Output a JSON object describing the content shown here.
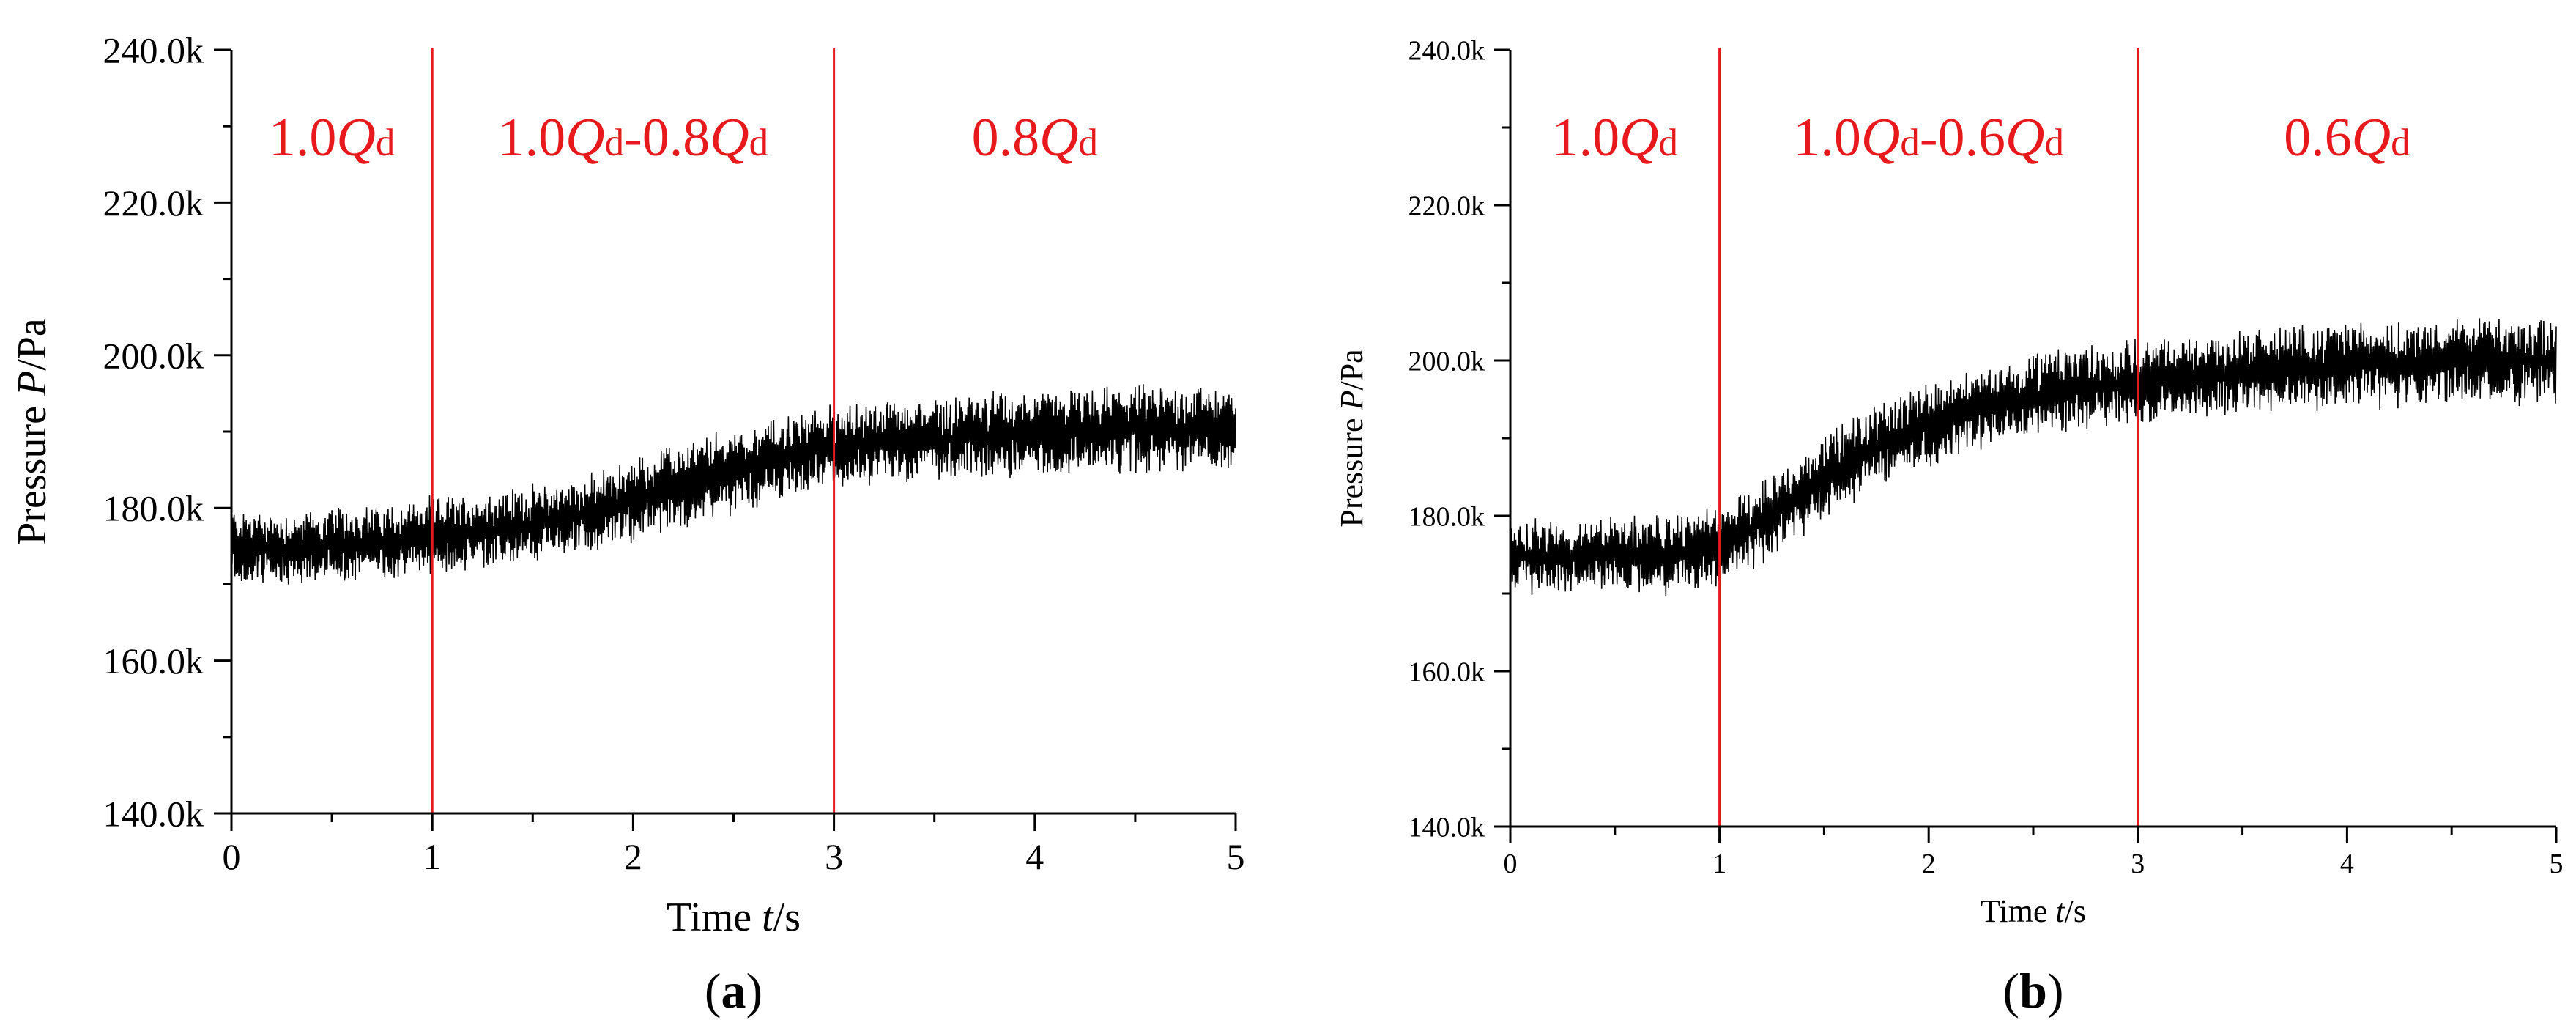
{
  "chart_data": [
    {
      "type": "line",
      "panel_label": "a",
      "xlabel": "Time t/s",
      "ylabel": "Pressure P/Pa",
      "xlim": [
        0,
        5
      ],
      "ylim": [
        140000,
        240000
      ],
      "x_ticks": [
        "0",
        "1",
        "2",
        "3",
        "4",
        "5"
      ],
      "y_ticks": [
        "140.0k",
        "160.0k",
        "180.0k",
        "200.0k",
        "220.0k",
        "240.0k"
      ],
      "grid": false,
      "legend": "none",
      "line_color": "#000000",
      "divider_color": "#e8191d",
      "dividers_x": [
        1,
        3
      ],
      "regions": [
        "1.0Qd",
        "1.0Qd-0.8Qd",
        "0.8Qd"
      ],
      "series": [
        {
          "x": [
            0,
            0.25,
            0.5,
            0.75,
            1.0,
            1.25,
            1.5,
            1.75,
            2.0,
            2.25,
            2.5,
            2.75,
            3.0,
            3.25,
            3.5,
            3.75,
            4.0,
            4.25,
            4.5,
            4.75,
            5.0
          ],
          "mean": [
            175000,
            174500,
            175000,
            175500,
            176500,
            177000,
            178000,
            179000,
            181000,
            183000,
            185000,
            186500,
            188000,
            188500,
            189000,
            189500,
            190000,
            190000,
            190500,
            190500,
            190500
          ],
          "band": [
            4500,
            4500,
            4500,
            4500,
            4500,
            4500,
            4500,
            4500,
            5000,
            5000,
            5000,
            5000,
            5000,
            5000,
            5000,
            5000,
            5000,
            5000,
            5000,
            5000,
            5000
          ]
        }
      ]
    },
    {
      "type": "line",
      "panel_label": "b",
      "xlabel": "Time t/s",
      "ylabel": "Pressure P/Pa",
      "xlim": [
        0,
        5
      ],
      "ylim": [
        140000,
        240000
      ],
      "x_ticks": [
        "0",
        "1",
        "2",
        "3",
        "4",
        "5"
      ],
      "y_ticks": [
        "140.0k",
        "160.0k",
        "180.0k",
        "200.0k",
        "220.0k",
        "240.0k"
      ],
      "grid": false,
      "legend": "none",
      "line_color": "#000000",
      "divider_color": "#e8191d",
      "dividers_x": [
        1,
        3
      ],
      "regions": [
        "1.0Qd",
        "1.0Qd-0.6Qd",
        "0.6Qd"
      ],
      "series": [
        {
          "x": [
            0,
            0.25,
            0.5,
            0.75,
            1.0,
            1.25,
            1.5,
            1.75,
            2.0,
            2.25,
            2.5,
            2.75,
            3.0,
            3.25,
            3.5,
            3.75,
            4.0,
            4.25,
            4.5,
            4.75,
            5.0
          ],
          "mean": [
            175000,
            174500,
            175000,
            175000,
            176000,
            180000,
            185000,
            189000,
            192000,
            194000,
            195500,
            196500,
            197000,
            198000,
            198500,
            199000,
            199500,
            199500,
            200000,
            200000,
            200000
          ],
          "band": [
            4500,
            4500,
            4500,
            4500,
            4500,
            5000,
            5000,
            5000,
            5000,
            5000,
            5000,
            5000,
            5000,
            5000,
            5000,
            5000,
            5000,
            5000,
            5000,
            5000,
            5000
          ]
        }
      ]
    }
  ]
}
